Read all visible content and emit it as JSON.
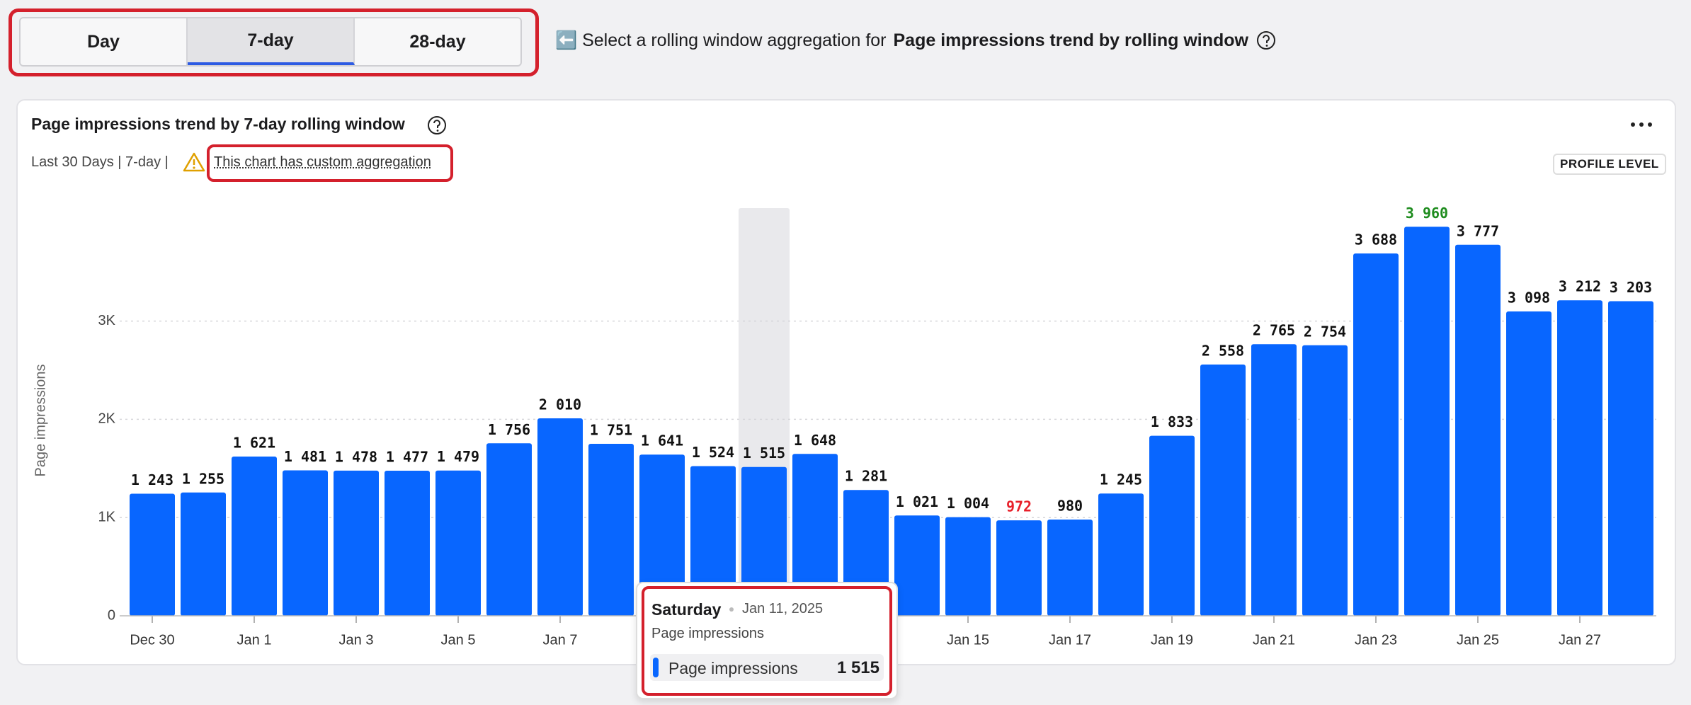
{
  "controls": {
    "options": [
      "Day",
      "7-day",
      "28-day"
    ],
    "selected": 1,
    "prompt": "⬅️ Select a rolling window aggregation for",
    "prompt_bold": "Page impressions trend by rolling window"
  },
  "chart_data": {
    "type": "bar",
    "title": "Page impressions trend by 7-day rolling window",
    "subtitle": "Last 30 Days | 7-day |",
    "note": "This chart has custom aggregation",
    "badge": "PROFILE LEVEL",
    "ylabel": "Page impressions",
    "categories": [
      "Dec 30",
      null,
      "Jan 1",
      null,
      "Jan 3",
      null,
      "Jan 5",
      null,
      "Jan 7",
      null,
      null,
      null,
      null,
      null,
      null,
      null,
      "Jan 15",
      null,
      "Jan 17",
      null,
      "Jan 19",
      null,
      "Jan 21",
      null,
      "Jan 23",
      null,
      "Jan 25",
      null,
      "Jan 27",
      null
    ],
    "series": [
      {
        "name": "Page impressions",
        "color": "#0866ff",
        "values": [
          1243,
          1255,
          1621,
          1481,
          1478,
          1477,
          1479,
          1756,
          2010,
          1751,
          1641,
          1524,
          1515,
          1648,
          1281,
          1021,
          1004,
          972,
          980,
          1245,
          1833,
          2558,
          2765,
          2754,
          3688,
          3960,
          3777,
          3098,
          3212,
          3203
        ],
        "value_labels": [
          "1 243",
          "1 255",
          "1 621",
          "1 481",
          "1 478",
          "1 477",
          "1 479",
          "1 756",
          "2 010",
          "1 751",
          "1 641",
          "1 524",
          "1 515",
          "1 648",
          "1 281",
          "1 021",
          "1 004",
          "972",
          "980",
          "1 245",
          "1 833",
          "2 558",
          "2 765",
          "2 754",
          "3 688",
          "3 960",
          "3 777",
          "3 098",
          "3 212",
          "3 203"
        ]
      }
    ],
    "min_label_color": "#e8202a",
    "max_label_color": "#1e8c1e",
    "ylim": [
      0,
      4150
    ],
    "yticks": [
      0,
      {
        "value": 1000,
        "label": "1K"
      },
      {
        "value": 2000,
        "label": "2K"
      },
      {
        "value": 3000,
        "label": "3K"
      }
    ],
    "grid": true
  },
  "tooltip": {
    "index": 12,
    "weekday": "Saturday",
    "date": "Jan 11, 2025",
    "metric": "Page impressions",
    "value_label": "1 515"
  }
}
